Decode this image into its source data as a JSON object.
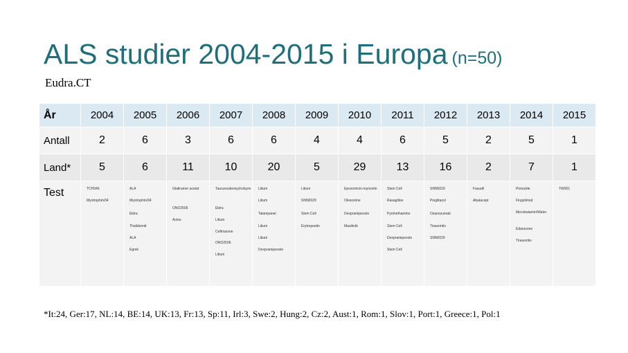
{
  "title": "ALS studier 2004-2015 i Europa",
  "title_n": "(n=50)",
  "subtitle": "Eudra.CT",
  "table": {
    "header_label": "År",
    "years": [
      "2004",
      "2005",
      "2006",
      "2007",
      "2008",
      "2009",
      "2010",
      "2011",
      "2012",
      "2013",
      "2014",
      "2015"
    ],
    "antall_label": "Antall",
    "antall": [
      "2",
      "6",
      "3",
      "6",
      "6",
      "4",
      "4",
      "6",
      "5",
      "2",
      "5",
      "1"
    ],
    "land_label": "Land*",
    "land": [
      "5",
      "6",
      "11",
      "10",
      "20",
      "5",
      "29",
      "13",
      "16",
      "2",
      "7",
      "1"
    ],
    "test_label": "Test",
    "tests": [
      [
        "TCH346",
        "Myotrophin/34"
      ],
      [
        "ALA",
        "Myotrophin/34",
        "Ektra",
        "Thalidomid",
        "ALA",
        "Egrek"
      ],
      [
        "Glatiramer acetat",
        "ONO2506",
        "Actos"
      ],
      [
        "Taurursodeoxycholsyre",
        "Ektra",
        "Litium",
        "Ceftriaxone",
        "ONO2506",
        "Litium"
      ],
      [
        "Litium",
        "Litium",
        "Talampanel",
        "Litium",
        "Litium",
        "Dexpramipexole"
      ],
      [
        "Litium",
        "SNN0029",
        "Stem Cell",
        "Erytropoetin"
      ],
      [
        "Epoxomicin-myricetin",
        "Olesoxime",
        "Dexpramipexole",
        "Masitinib"
      ],
      [
        "Stem Cell",
        "Rasagiline",
        "Pyrimethamine",
        "Stem Cell",
        "Dexpramipexole",
        "Stem Cell"
      ],
      [
        "SNN0029",
        "Pioglitazol",
        "Ozanezumab",
        "Tirasemtiv",
        "SNN0029"
      ],
      [
        "Fasudil",
        "Abatacept"
      ],
      [
        "Pimozide",
        "Fingolimod",
        "Mecobalamin/Water",
        "Edaravone",
        "Tirasemtiv"
      ],
      [
        "TW001"
      ]
    ]
  },
  "footnote": "*It:24, Ger:17, NL:14, BE:14, UK:13, Fr:13, Sp:11, Irl:3, Swe:2, Hung:2, Cz:2, Aust:1, Rom:1, Slov:1, Port:1, Greece:1, Pol:1"
}
